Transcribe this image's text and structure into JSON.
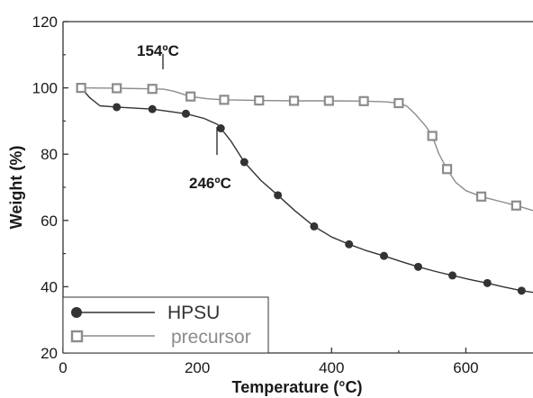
{
  "chart_data": {
    "type": "line",
    "title": "",
    "xlabel": "Temperature (°C)",
    "ylabel": "Weight (%)",
    "xlim": [
      0,
      700
    ],
    "ylim": [
      20,
      120
    ],
    "x_ticks": [
      0,
      200,
      400,
      600
    ],
    "y_ticks": [
      20,
      40,
      60,
      80,
      100,
      120
    ],
    "grid": false,
    "legend_position": "bottom-left",
    "series": [
      {
        "name": "HPSU",
        "color": "#333333",
        "marker": "filled-circle",
        "markers": [
          [
            27,
            100
          ],
          [
            80,
            94.2
          ],
          [
            133,
            93.6
          ],
          [
            183,
            92.2
          ],
          [
            235,
            87.8
          ],
          [
            270,
            77.6
          ],
          [
            320,
            67.6
          ],
          [
            374,
            58.2
          ],
          [
            426,
            52.8
          ],
          [
            478,
            49.3
          ],
          [
            529,
            46
          ],
          [
            580,
            43.4
          ],
          [
            632,
            41.1
          ],
          [
            683,
            38.8
          ]
        ],
        "curve": [
          [
            20,
            100
          ],
          [
            27,
            100
          ],
          [
            40,
            97
          ],
          [
            55,
            94.6
          ],
          [
            80,
            94.2
          ],
          [
            133,
            93.6
          ],
          [
            183,
            92.2
          ],
          [
            210,
            90.8
          ],
          [
            230,
            89
          ],
          [
            235,
            87.8
          ],
          [
            250,
            84
          ],
          [
            270,
            77.6
          ],
          [
            295,
            72
          ],
          [
            320,
            67.6
          ],
          [
            345,
            63
          ],
          [
            374,
            58.2
          ],
          [
            400,
            55
          ],
          [
            426,
            52.8
          ],
          [
            450,
            51
          ],
          [
            478,
            49.3
          ],
          [
            505,
            47.5
          ],
          [
            529,
            46
          ],
          [
            555,
            44.6
          ],
          [
            580,
            43.4
          ],
          [
            605,
            42.2
          ],
          [
            632,
            41.1
          ],
          [
            655,
            40
          ],
          [
            683,
            38.8
          ],
          [
            700,
            38.3
          ]
        ]
      },
      {
        "name": "precursor",
        "color": "#8c8c8c",
        "marker": "open-square",
        "markers": [
          [
            27,
            100
          ],
          [
            80,
            99.9
          ],
          [
            133,
            99.7
          ],
          [
            190,
            97.4
          ],
          [
            240,
            96.4
          ],
          [
            292,
            96.2
          ],
          [
            344,
            96.1
          ],
          [
            396,
            96.1
          ],
          [
            448,
            96
          ],
          [
            500,
            95.4
          ],
          [
            550,
            85.5
          ],
          [
            572,
            75.5
          ],
          [
            623,
            67.2
          ],
          [
            675,
            64.5
          ]
        ],
        "curve": [
          [
            20,
            100
          ],
          [
            27,
            100
          ],
          [
            80,
            99.9
          ],
          [
            133,
            99.7
          ],
          [
            150,
            99.6
          ],
          [
            165,
            99
          ],
          [
            190,
            97.4
          ],
          [
            215,
            96.7
          ],
          [
            240,
            96.4
          ],
          [
            292,
            96.2
          ],
          [
            344,
            96.1
          ],
          [
            396,
            96.1
          ],
          [
            448,
            96
          ],
          [
            480,
            95.8
          ],
          [
            500,
            95.4
          ],
          [
            512,
            94.5
          ],
          [
            525,
            92
          ],
          [
            540,
            88.5
          ],
          [
            550,
            85.5
          ],
          [
            560,
            80
          ],
          [
            572,
            75.5
          ],
          [
            585,
            71.5
          ],
          [
            600,
            69
          ],
          [
            623,
            67.2
          ],
          [
            650,
            65.8
          ],
          [
            675,
            64.5
          ],
          [
            700,
            63
          ]
        ]
      }
    ],
    "annotations": [
      {
        "text": "154ºC",
        "x": 154,
        "y": 100
      },
      {
        "text": "246ºC",
        "x": 246,
        "y": 87
      }
    ]
  }
}
